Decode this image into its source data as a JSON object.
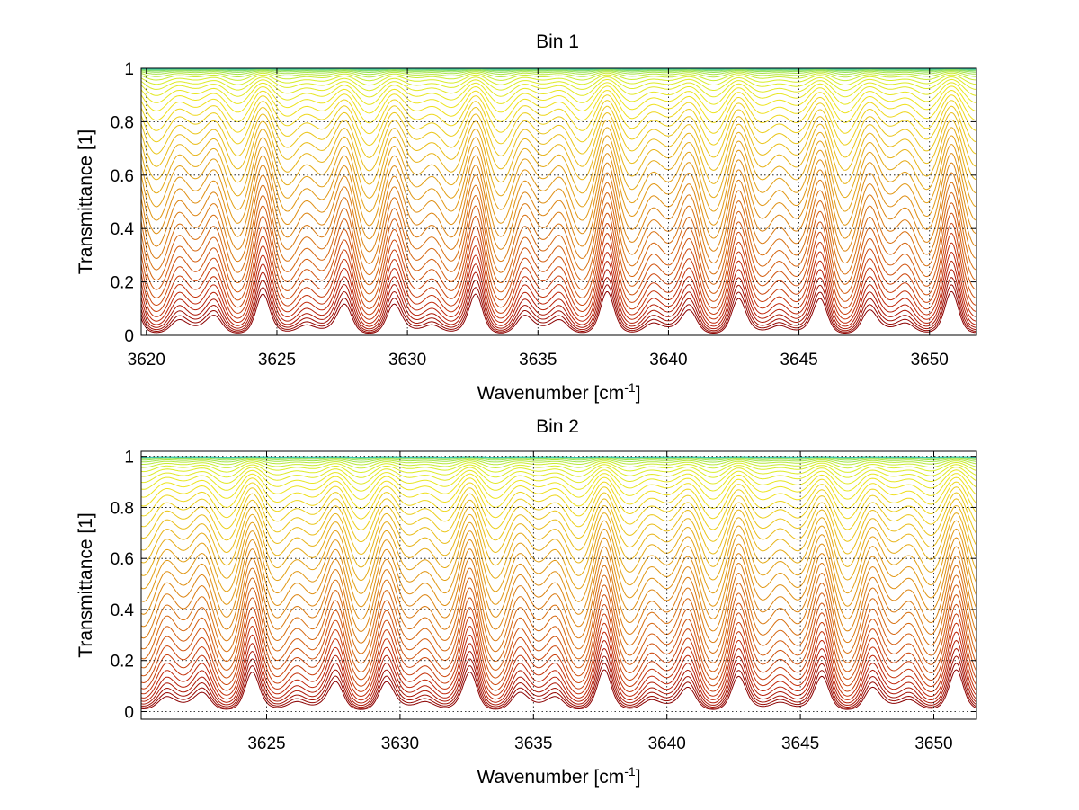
{
  "chart_data": [
    {
      "type": "line",
      "title": "Bin 1",
      "xlabel": "Wavenumber [cm",
      "xlabel_sup": "-1",
      "xlabel_tail": "]",
      "ylabel": "Transmittance [1]",
      "xlim": [
        3619.8,
        3651.8
      ],
      "ylim": [
        0,
        1
      ],
      "xticks": [
        3620,
        3625,
        3630,
        3635,
        3640,
        3645,
        3650
      ],
      "xtick_labels": [
        "3620",
        "3625",
        "3630",
        "3635",
        "3640",
        "3645",
        "3650"
      ],
      "yticks": [
        0,
        0.2,
        0.4,
        0.6,
        0.8,
        1
      ],
      "ytick_labels": [
        "0",
        "0.2",
        "0.4",
        "0.6",
        "0.8",
        "1"
      ],
      "grid": true,
      "series_count": 40,
      "colormap": [
        "#8b0000",
        "#c0260a",
        "#d25a0e",
        "#de8a12",
        "#e8b818",
        "#f0e21c",
        "#d6ee2a",
        "#7fdc60",
        "#3cc8b4"
      ],
      "absorption_lines_cm-1": [
        3621.0,
        3622.8,
        3624.1,
        3625.9,
        3626.5,
        3628.1,
        3629.6,
        3630.5,
        3631.7,
        3632.8,
        3634.3,
        3635.6,
        3636.6,
        3638.2,
        3639.9,
        3641.1,
        3642.4,
        3643.9,
        3644.6,
        3646.3,
        3647.5,
        3648.8,
        3650.4,
        3651.3
      ]
    },
    {
      "type": "line",
      "title": "Bin 2",
      "xlabel": "Wavenumber [cm",
      "xlabel_sup": "-1",
      "xlabel_tail": "]",
      "ylabel": "Transmittance [1]",
      "xlim": [
        3620.3,
        3651.6
      ],
      "ylim": [
        -0.03,
        1.02
      ],
      "xticks": [
        3625,
        3630,
        3635,
        3640,
        3645,
        3650
      ],
      "xtick_labels": [
        "3625",
        "3630",
        "3635",
        "3640",
        "3645",
        "3650"
      ],
      "yticks": [
        0,
        0.2,
        0.4,
        0.6,
        0.8,
        1
      ],
      "ytick_labels": [
        "0",
        "0.2",
        "0.4",
        "0.6",
        "0.8",
        "1"
      ],
      "grid": true,
      "series_count": 40,
      "colormap": [
        "#8b0000",
        "#c0260a",
        "#d25a0e",
        "#de8a12",
        "#e8b818",
        "#f0e21c",
        "#d6ee2a",
        "#7fdc60",
        "#3cc8b4"
      ],
      "absorption_lines_cm-1": [
        3621.2,
        3622.6,
        3624.6,
        3625.4,
        3626.8,
        3628.0,
        3629.4,
        3630.8,
        3631.9,
        3633.3,
        3634.2,
        3635.4,
        3636.7,
        3637.9,
        3639.3,
        3641.2,
        3642.5,
        3643.9,
        3645.3,
        3646.8,
        3647.9,
        3649.3,
        3650.7
      ]
    }
  ]
}
